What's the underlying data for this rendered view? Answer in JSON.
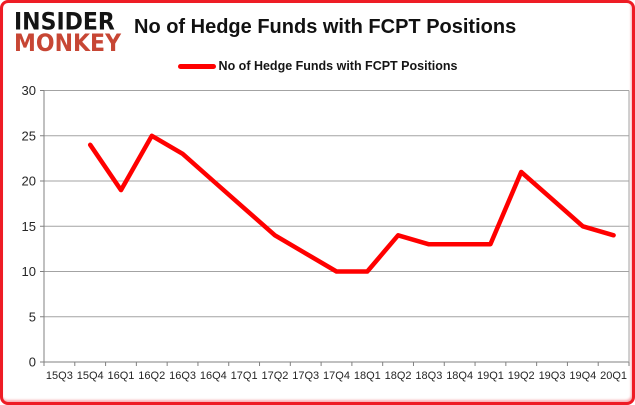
{
  "brand": {
    "line1": "INSIDER",
    "line2": "MONKEY"
  },
  "header": {
    "title": "No of Hedge Funds with FCPT Positions"
  },
  "legend": {
    "label": "No of Hedge Funds with FCPT Positions"
  },
  "colors": {
    "line": "#ff0000",
    "frame": "#ee1c25",
    "brand_red": "#c74634",
    "grid": "#a3a3a3",
    "axis": "#808080",
    "label_text": "#262626"
  },
  "chart_data": {
    "type": "line",
    "title": "No of Hedge Funds with FCPT Positions",
    "xlabel": "",
    "ylabel": "",
    "categories": [
      "15Q3",
      "15Q4",
      "16Q1",
      "16Q2",
      "16Q3",
      "16Q4",
      "17Q1",
      "17Q2",
      "17Q3",
      "17Q4",
      "18Q1",
      "18Q2",
      "18Q3",
      "18Q4",
      "19Q1",
      "19Q2",
      "19Q3",
      "19Q4",
      "20Q1"
    ],
    "series": [
      {
        "name": "No of Hedge Funds with FCPT Positions",
        "values": [
          null,
          24,
          19,
          25,
          23,
          20,
          17,
          14,
          12,
          10,
          10,
          14,
          13,
          13,
          13,
          21,
          18,
          15,
          14
        ]
      }
    ],
    "ylim": [
      0,
      30
    ],
    "yticks": [
      0,
      5,
      10,
      15,
      20,
      25,
      30
    ],
    "grid": true,
    "legend_position": "top"
  }
}
